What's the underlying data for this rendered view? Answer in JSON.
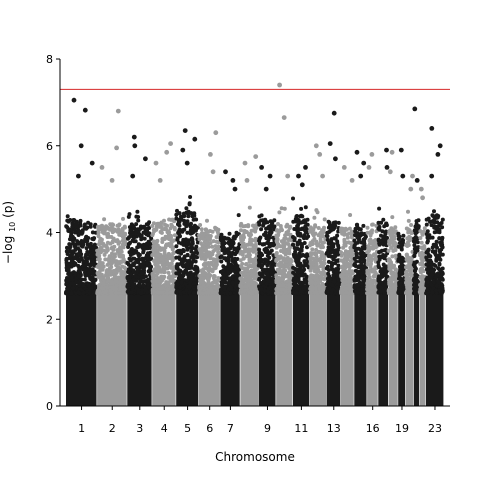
{
  "chart_data": {
    "type": "scatter",
    "subtype": "manhattan",
    "xlabel": "Chromosome",
    "ylabel": "−log10(p)",
    "ylabel_parts": {
      "prefix": "−log",
      "sub": "10",
      "suffix": "(p)"
    },
    "ylim": [
      0,
      8
    ],
    "yticks": [
      0,
      2,
      4,
      6,
      8
    ],
    "grid": false,
    "threshold": {
      "value": 7.3,
      "color": "#d62728"
    },
    "colors": {
      "odd": "#1a1a1a",
      "even": "#9b9b9b"
    },
    "x_tick_labels": [
      "1",
      "2",
      "3",
      "4",
      "5",
      "6",
      "7",
      "9",
      "11",
      "13",
      "16",
      "19",
      "23"
    ],
    "chromosomes": [
      {
        "chrom": "1",
        "span": 1.0,
        "bulk_top": 4.3,
        "peaks": [
          7.05,
          6.82,
          6.0,
          5.6,
          5.3
        ]
      },
      {
        "chrom": "2",
        "span": 0.97,
        "bulk_top": 4.2,
        "peaks": [
          6.8,
          5.95,
          5.5,
          5.2
        ]
      },
      {
        "chrom": "3",
        "span": 0.8,
        "bulk_top": 4.2,
        "peaks": [
          6.2,
          6.0,
          5.7,
          5.3
        ]
      },
      {
        "chrom": "4",
        "span": 0.77,
        "bulk_top": 4.3,
        "peaks": [
          6.05,
          5.85,
          5.6,
          5.2
        ]
      },
      {
        "chrom": "5",
        "span": 0.73,
        "bulk_top": 4.5,
        "peaks": [
          6.35,
          6.15,
          5.9,
          5.6
        ]
      },
      {
        "chrom": "6",
        "span": 0.69,
        "bulk_top": 4.1,
        "peaks": [
          6.3,
          5.8,
          5.4
        ]
      },
      {
        "chrom": "7",
        "span": 0.64,
        "bulk_top": 4.0,
        "peaks": [
          5.4,
          5.2,
          5.0
        ]
      },
      {
        "chrom": "8",
        "span": 0.59,
        "bulk_top": 4.2,
        "peaks": [
          5.75,
          5.6,
          5.2
        ]
      },
      {
        "chrom": "9",
        "span": 0.56,
        "bulk_top": 4.3,
        "peaks": [
          5.5,
          5.3,
          5.0
        ]
      },
      {
        "chrom": "10",
        "span": 0.54,
        "bulk_top": 4.2,
        "peaks": [
          7.4,
          6.65,
          5.3
        ]
      },
      {
        "chrom": "11",
        "span": 0.54,
        "bulk_top": 4.4,
        "peaks": [
          5.5,
          5.3,
          5.1
        ]
      },
      {
        "chrom": "12",
        "span": 0.54,
        "bulk_top": 4.2,
        "peaks": [
          6.0,
          5.8,
          5.3
        ]
      },
      {
        "chrom": "13",
        "span": 0.46,
        "bulk_top": 4.3,
        "peaks": [
          6.75,
          6.05,
          5.7
        ]
      },
      {
        "chrom": "14",
        "span": 0.43,
        "bulk_top": 4.1,
        "peaks": [
          5.5,
          5.2
        ]
      },
      {
        "chrom": "15",
        "span": 0.41,
        "bulk_top": 4.2,
        "peaks": [
          5.85,
          5.6,
          5.3
        ]
      },
      {
        "chrom": "16",
        "span": 0.36,
        "bulk_top": 4.2,
        "peaks": [
          5.8,
          5.5
        ]
      },
      {
        "chrom": "17",
        "span": 0.33,
        "bulk_top": 4.3,
        "peaks": [
          5.9,
          5.5
        ]
      },
      {
        "chrom": "18",
        "span": 0.31,
        "bulk_top": 4.1,
        "peaks": [
          5.85,
          5.4
        ]
      },
      {
        "chrom": "19",
        "span": 0.24,
        "bulk_top": 4.0,
        "peaks": [
          5.9,
          5.3
        ]
      },
      {
        "chrom": "20",
        "span": 0.26,
        "bulk_top": 4.2,
        "peaks": [
          5.3,
          5.0
        ]
      },
      {
        "chrom": "21",
        "span": 0.19,
        "bulk_top": 4.3,
        "peaks": [
          6.85,
          5.2
        ]
      },
      {
        "chrom": "22",
        "span": 0.2,
        "bulk_top": 4.1,
        "peaks": [
          5.0,
          4.8
        ]
      },
      {
        "chrom": "23",
        "span": 0.58,
        "bulk_top": 4.4,
        "peaks": [
          6.4,
          6.0,
          5.8,
          5.3
        ]
      }
    ]
  }
}
